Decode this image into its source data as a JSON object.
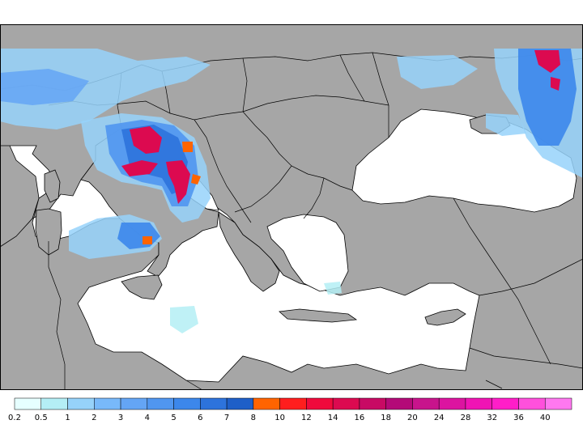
{
  "map": {
    "colors": {
      "land": "#a6a6a6",
      "sea": "#ffffff",
      "border": "#000000"
    }
  },
  "legend": {
    "labels": [
      "0.2",
      "0.5",
      "1",
      "2",
      "3",
      "4",
      "5",
      "6",
      "7",
      "8",
      "10",
      "12",
      "14",
      "16",
      "18",
      "20",
      "24",
      "28",
      "32",
      "36",
      "40"
    ],
    "colors": [
      "#e6ffff",
      "#b4eef5",
      "#96d2fa",
      "#78b9fa",
      "#64a5f5",
      "#5096f0",
      "#3c87eb",
      "#2d73dc",
      "#1e5fc8",
      "#ff6400",
      "#ff1e1e",
      "#f00a3c",
      "#dc0a50",
      "#c80a64",
      "#b40a78",
      "#c8148c",
      "#dc14a0",
      "#f014b4",
      "#ff1ec8",
      "#ff50dc",
      "#ff78f0"
    ]
  }
}
